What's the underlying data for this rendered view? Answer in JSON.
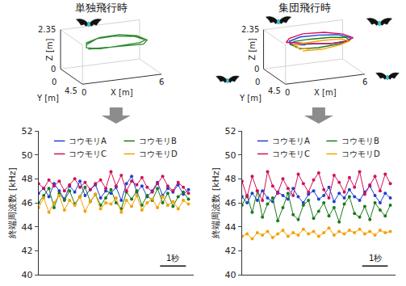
{
  "chart_data": [
    {
      "type": "line3d",
      "title": "単独飛行時",
      "xlabel": "X [m]",
      "ylabel": "Y [m]",
      "zlabel": "Z [m]",
      "xlim": [
        0,
        6
      ],
      "ylim": [
        0,
        4.5
      ],
      "zlim": [
        0,
        2.35
      ],
      "xticks": [
        0,
        6
      ],
      "yticks": [
        0,
        4.5
      ],
      "zticks": [
        0,
        2.35
      ],
      "series": [
        {
          "color": "#2e8b2e",
          "x": [
            1.0,
            2.0,
            3.5,
            5.0,
            5.6,
            5.2,
            4.0,
            2.5,
            1.3,
            1.0,
            1.8,
            3.2,
            4.8,
            5.5,
            5.0,
            3.6,
            2.2,
            1.2
          ],
          "y": [
            3.0,
            3.6,
            3.8,
            3.5,
            2.6,
            1.6,
            1.2,
            1.3,
            1.8,
            2.6,
            3.3,
            3.6,
            3.4,
            2.5,
            1.7,
            1.4,
            1.5,
            2.2
          ],
          "z": [
            1.7,
            1.8,
            1.8,
            1.7,
            1.7,
            1.8,
            1.9,
            1.9,
            1.8,
            1.7,
            1.7,
            1.8,
            1.8,
            1.7,
            1.8,
            1.9,
            1.9,
            1.8
          ]
        }
      ]
    },
    {
      "type": "line",
      "ylabel": "終端周波数 [kHz]",
      "x": [
        0,
        0.2,
        0.4,
        0.6,
        0.8,
        1.0,
        1.2,
        1.4,
        1.6,
        1.8,
        2.0,
        2.2,
        2.4,
        2.6,
        2.8,
        3.0,
        3.2,
        3.4,
        3.6,
        3.8,
        4.0,
        4.2,
        4.4,
        4.6,
        4.8,
        5.0,
        5.2,
        5.4,
        5.6,
        5.8
      ],
      "xlim": [
        0,
        6
      ],
      "ylim": [
        40,
        52
      ],
      "yticks": [
        40,
        42,
        44,
        46,
        48,
        50,
        52
      ],
      "grid": false,
      "tick_labels": "y",
      "legend": "top",
      "marker": "circle",
      "scale_bar": {
        "value": 1,
        "label": "1秒"
      },
      "series": [
        {
          "name": "コウモリA",
          "color": "#1f3fd0",
          "values": [
            46.8,
            47.2,
            46.5,
            47.6,
            47.0,
            46.3,
            47.4,
            46.9,
            47.8,
            46.6,
            47.1,
            47.5,
            46.4,
            47.0,
            46.8,
            47.3,
            46.2,
            47.6,
            48.2,
            46.9,
            47.4,
            46.5,
            47.0,
            47.7,
            46.6,
            47.2,
            46.9,
            47.5,
            46.7,
            47.1
          ]
        },
        {
          "name": "コウモリB",
          "color": "#1a7a1a",
          "values": [
            46.0,
            46.6,
            47.2,
            45.6,
            46.8,
            46.2,
            47.0,
            45.9,
            46.5,
            47.3,
            46.1,
            46.7,
            45.8,
            46.4,
            47.1,
            46.0,
            45.5,
            46.9,
            46.3,
            47.0,
            45.8,
            46.6,
            46.2,
            47.2,
            46.0,
            46.8,
            45.7,
            46.5,
            46.9,
            46.3
          ]
        },
        {
          "name": "コウモリC",
          "color": "#d0105a",
          "values": [
            47.6,
            47.2,
            47.9,
            47.4,
            47.8,
            47.0,
            47.5,
            48.0,
            47.3,
            47.7,
            47.1,
            47.6,
            47.9,
            47.2,
            48.6,
            47.4,
            48.3,
            47.0,
            47.8,
            47.5,
            48.1,
            47.3,
            46.9,
            47.6,
            48.2,
            47.4,
            47.0,
            47.7,
            47.3,
            46.8
          ]
        },
        {
          "name": "コウモリD",
          "color": "#f5a000",
          "values": [
            45.6,
            46.4,
            45.2,
            46.0,
            46.6,
            45.4,
            46.2,
            45.8,
            46.5,
            45.3,
            46.1,
            46.7,
            45.5,
            46.0,
            45.9,
            46.4,
            45.2,
            46.2,
            45.7,
            46.6,
            45.4,
            46.0,
            46.3,
            45.6,
            46.5,
            45.8,
            46.1,
            45.5,
            46.2,
            45.9
          ]
        }
      ]
    },
    {
      "type": "line3d",
      "title": "集団飛行時",
      "xlabel": "X [m]",
      "ylabel": "Y [m]",
      "zlabel": "Z [m]",
      "xlim": [
        0,
        6
      ],
      "ylim": [
        0,
        4.5
      ],
      "zlim": [
        0,
        2.35
      ],
      "xticks": [
        0,
        6
      ],
      "yticks": [
        0,
        4.5
      ],
      "zticks": [
        0,
        2.35
      ],
      "series": [
        {
          "color": "#1f3fd0",
          "x": [
            1.2,
            2.5,
            4.0,
            5.3,
            5.7,
            5.1,
            3.8,
            2.3,
            1.3,
            1.1,
            2.0
          ],
          "y": [
            2.8,
            3.5,
            3.7,
            3.3,
            2.4,
            1.5,
            1.2,
            1.3,
            1.8,
            2.5,
            3.2
          ],
          "z": [
            1.9,
            1.95,
            1.9,
            1.85,
            1.8,
            1.85,
            1.9,
            1.95,
            1.9,
            1.85,
            1.9
          ]
        },
        {
          "color": "#1a7a1a",
          "x": [
            1.5,
            2.8,
            4.4,
            5.4,
            5.5,
            4.6,
            3.0,
            1.8,
            1.2,
            1.5
          ],
          "y": [
            3.2,
            3.7,
            3.6,
            3.0,
            2.0,
            1.3,
            1.1,
            1.4,
            2.2,
            3.0
          ],
          "z": [
            1.7,
            1.75,
            1.8,
            1.8,
            1.75,
            1.7,
            1.7,
            1.75,
            1.8,
            1.75
          ]
        },
        {
          "color": "#d0105a",
          "x": [
            0.9,
            2.0,
            3.6,
            5.0,
            5.8,
            5.4,
            4.2,
            2.6,
            1.4,
            0.9,
            1.6
          ],
          "y": [
            2.4,
            3.3,
            3.9,
            3.6,
            2.7,
            1.7,
            1.1,
            1.0,
            1.5,
            2.2,
            3.0
          ],
          "z": [
            2.0,
            2.0,
            1.95,
            1.9,
            1.85,
            1.9,
            2.0,
            2.05,
            2.0,
            1.95,
            2.0
          ]
        },
        {
          "color": "#f5a000",
          "x": [
            1.7,
            3.0,
            4.5,
            5.5,
            5.2,
            4.0,
            2.6,
            1.6,
            1.4,
            2.2
          ],
          "y": [
            3.4,
            3.8,
            3.5,
            2.8,
            1.8,
            1.4,
            1.5,
            1.9,
            2.7,
            3.4
          ],
          "z": [
            1.6,
            1.65,
            1.7,
            1.7,
            1.65,
            1.6,
            1.6,
            1.65,
            1.7,
            1.65
          ]
        }
      ]
    },
    {
      "type": "line",
      "ylabel": "終端周波数 [kHz]",
      "x": [
        0,
        0.2,
        0.4,
        0.6,
        0.8,
        1.0,
        1.2,
        1.4,
        1.6,
        1.8,
        2.0,
        2.2,
        2.4,
        2.6,
        2.8,
        3.0,
        3.2,
        3.4,
        3.6,
        3.8,
        4.0,
        4.2,
        4.4,
        4.6,
        4.8,
        5.0,
        5.2,
        5.4,
        5.6,
        5.8
      ],
      "xlim": [
        0,
        6
      ],
      "ylim": [
        40,
        52
      ],
      "yticks": [
        40,
        42,
        44,
        46,
        48,
        50,
        52
      ],
      "grid": false,
      "tick_labels": "y",
      "legend": "top",
      "marker": "circle",
      "scale_bar": {
        "value": 1,
        "label": "1秒"
      },
      "series": [
        {
          "name": "コウモリA",
          "color": "#1f3fd0",
          "values": [
            46.5,
            46.0,
            46.8,
            46.2,
            47.0,
            46.4,
            46.1,
            46.9,
            46.6,
            46.3,
            47.2,
            46.5,
            46.0,
            46.7,
            47.0,
            46.3,
            46.6,
            47.3,
            46.1,
            46.8,
            46.4,
            47.1,
            46.5,
            46.2,
            46.9,
            47.4,
            46.6,
            46.0,
            46.8,
            46.4
          ]
        },
        {
          "name": "コウモリB",
          "color": "#1a7a1a",
          "values": [
            45.8,
            46.6,
            45.2,
            47.0,
            44.8,
            45.9,
            46.4,
            44.5,
            45.6,
            46.8,
            45.0,
            44.6,
            45.8,
            46.2,
            44.7,
            45.3,
            46.0,
            44.9,
            45.6,
            44.4,
            45.9,
            46.5,
            45.1,
            44.8,
            45.7,
            44.6,
            46.0,
            45.4,
            44.9,
            45.8
          ]
        },
        {
          "name": "コウモリC",
          "color": "#d0105a",
          "values": [
            47.8,
            46.5,
            48.2,
            47.0,
            46.2,
            48.6,
            47.4,
            46.8,
            48.0,
            47.2,
            46.6,
            48.4,
            47.6,
            46.9,
            47.9,
            48.5,
            47.1,
            46.4,
            48.3,
            47.7,
            46.9,
            48.1,
            47.3,
            48.6,
            46.7,
            47.5,
            48.2,
            47.0,
            48.4,
            47.6
          ]
        },
        {
          "name": "コウモリD",
          "color": "#f5a000",
          "values": [
            43.2,
            43.4,
            43.0,
            43.5,
            43.3,
            43.6,
            43.1,
            43.4,
            43.7,
            43.2,
            43.5,
            43.3,
            43.8,
            43.4,
            43.6,
            43.2,
            43.5,
            43.9,
            43.3,
            43.6,
            43.4,
            43.7,
            43.5,
            43.8,
            43.4,
            43.6,
            43.3,
            43.7,
            43.5,
            43.6
          ]
        }
      ]
    }
  ]
}
